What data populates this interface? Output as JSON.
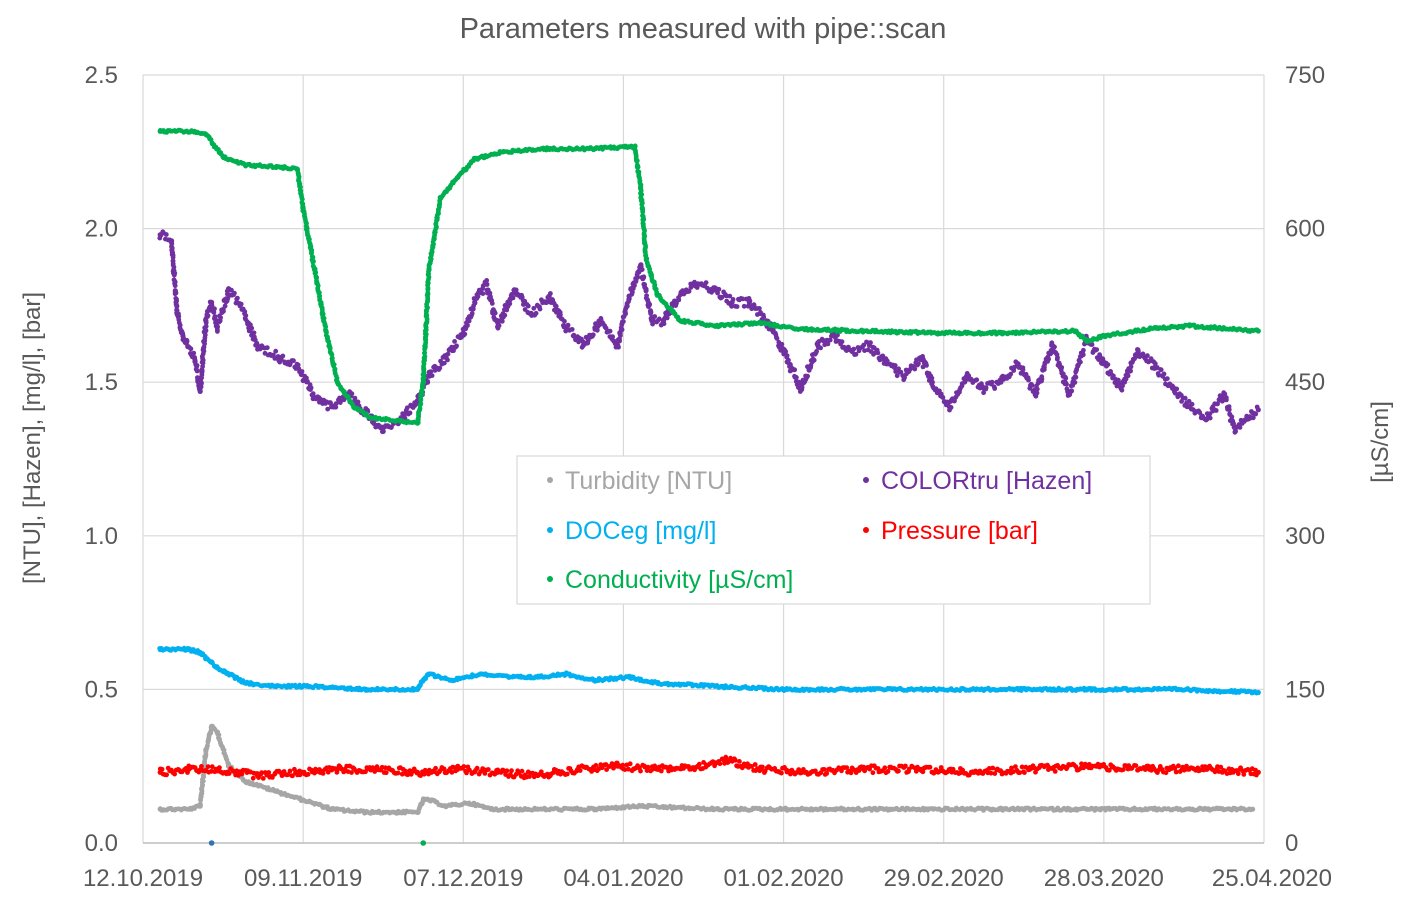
{
  "chart_data": {
    "type": "scatter",
    "title": "Parameters measured with pipe::scan",
    "ylabel": "[NTU], [Hazen], [mg/l], [bar]",
    "y2label": "[µS/cm]",
    "xlim": [
      "2019-10-12",
      "2020-04-25"
    ],
    "ylim": [
      0,
      2.5
    ],
    "y2lim": [
      0,
      750
    ],
    "x_ticks": [
      "12.10.2019",
      "09.11.2019",
      "07.12.2019",
      "04.01.2020",
      "01.02.2020",
      "29.02.2020",
      "28.03.2020",
      "25.04.2020"
    ],
    "y_ticks": [
      "0.0",
      "0.5",
      "1.0",
      "1.5",
      "2.0",
      "2.5"
    ],
    "y2_ticks": [
      "0",
      "150",
      "300",
      "450",
      "600",
      "750"
    ],
    "grid": true,
    "legend_position": "center",
    "series": [
      {
        "name": "Turbidity [NTU]",
        "axis": "left",
        "color": "#a6a6a6",
        "points": [
          [
            "2019-10-15",
            0.11
          ],
          [
            "2019-10-20",
            0.11
          ],
          [
            "2019-10-22",
            0.12
          ],
          [
            "2019-10-23",
            0.3
          ],
          [
            "2019-10-24",
            0.38
          ],
          [
            "2019-10-25",
            0.36
          ],
          [
            "2019-10-27",
            0.25
          ],
          [
            "2019-10-30",
            0.2
          ],
          [
            "2019-11-04",
            0.17
          ],
          [
            "2019-11-09",
            0.14
          ],
          [
            "2019-11-14",
            0.11
          ],
          [
            "2019-11-20",
            0.1
          ],
          [
            "2019-11-25",
            0.1
          ],
          [
            "2019-11-29",
            0.1
          ],
          [
            "2019-11-30",
            0.14
          ],
          [
            "2019-12-01",
            0.14
          ],
          [
            "2019-12-04",
            0.12
          ],
          [
            "2019-12-08",
            0.13
          ],
          [
            "2019-12-12",
            0.11
          ],
          [
            "2019-12-20",
            0.11
          ],
          [
            "2019-12-30",
            0.11
          ],
          [
            "2020-01-07",
            0.12
          ],
          [
            "2020-01-20",
            0.11
          ],
          [
            "2020-02-05",
            0.11
          ],
          [
            "2020-02-20",
            0.11
          ],
          [
            "2020-03-10",
            0.11
          ],
          [
            "2020-03-25",
            0.11
          ],
          [
            "2020-04-10",
            0.11
          ],
          [
            "2020-04-23",
            0.11
          ]
        ]
      },
      {
        "name": "COLORtru [Hazen]",
        "axis": "left",
        "color": "#7030a0",
        "points": [
          [
            "2019-10-15",
            1.98
          ],
          [
            "2019-10-17",
            1.96
          ],
          [
            "2019-10-18",
            1.72
          ],
          [
            "2019-10-19",
            1.65
          ],
          [
            "2019-10-21",
            1.58
          ],
          [
            "2019-10-22",
            1.47
          ],
          [
            "2019-10-23",
            1.7
          ],
          [
            "2019-10-24",
            1.76
          ],
          [
            "2019-10-25",
            1.68
          ],
          [
            "2019-10-27",
            1.8
          ],
          [
            "2019-10-29",
            1.75
          ],
          [
            "2019-11-01",
            1.62
          ],
          [
            "2019-11-05",
            1.58
          ],
          [
            "2019-11-08",
            1.55
          ],
          [
            "2019-11-11",
            1.45
          ],
          [
            "2019-11-14",
            1.42
          ],
          [
            "2019-11-17",
            1.46
          ],
          [
            "2019-11-20",
            1.4
          ],
          [
            "2019-11-23",
            1.34
          ],
          [
            "2019-11-26",
            1.38
          ],
          [
            "2019-11-29",
            1.44
          ],
          [
            "2019-12-01",
            1.52
          ],
          [
            "2019-12-04",
            1.58
          ],
          [
            "2019-12-07",
            1.66
          ],
          [
            "2019-12-09",
            1.76
          ],
          [
            "2019-12-11",
            1.82
          ],
          [
            "2019-12-13",
            1.68
          ],
          [
            "2019-12-16",
            1.8
          ],
          [
            "2019-12-19",
            1.72
          ],
          [
            "2019-12-22",
            1.78
          ],
          [
            "2019-12-25",
            1.68
          ],
          [
            "2019-12-28",
            1.62
          ],
          [
            "2019-12-31",
            1.7
          ],
          [
            "2020-01-03",
            1.62
          ],
          [
            "2020-01-05",
            1.78
          ],
          [
            "2020-01-07",
            1.88
          ],
          [
            "2020-01-09",
            1.7
          ],
          [
            "2020-01-11",
            1.7
          ],
          [
            "2020-01-13",
            1.76
          ],
          [
            "2020-01-15",
            1.8
          ],
          [
            "2020-01-17",
            1.82
          ],
          [
            "2020-01-20",
            1.8
          ],
          [
            "2020-01-23",
            1.76
          ],
          [
            "2020-01-26",
            1.76
          ],
          [
            "2020-01-29",
            1.7
          ],
          [
            "2020-02-01",
            1.6
          ],
          [
            "2020-02-04",
            1.48
          ],
          [
            "2020-02-07",
            1.62
          ],
          [
            "2020-02-10",
            1.65
          ],
          [
            "2020-02-13",
            1.6
          ],
          [
            "2020-02-16",
            1.62
          ],
          [
            "2020-02-19",
            1.56
          ],
          [
            "2020-02-22",
            1.52
          ],
          [
            "2020-02-25",
            1.58
          ],
          [
            "2020-02-27",
            1.5
          ],
          [
            "2020-03-01",
            1.42
          ],
          [
            "2020-03-04",
            1.52
          ],
          [
            "2020-03-07",
            1.48
          ],
          [
            "2020-03-10",
            1.5
          ],
          [
            "2020-03-13",
            1.56
          ],
          [
            "2020-03-16",
            1.46
          ],
          [
            "2020-03-19",
            1.62
          ],
          [
            "2020-03-22",
            1.46
          ],
          [
            "2020-03-25",
            1.64
          ],
          [
            "2020-03-28",
            1.56
          ],
          [
            "2020-03-31",
            1.48
          ],
          [
            "2020-04-03",
            1.6
          ],
          [
            "2020-04-06",
            1.55
          ],
          [
            "2020-04-09",
            1.48
          ],
          [
            "2020-04-12",
            1.42
          ],
          [
            "2020-04-15",
            1.38
          ],
          [
            "2020-04-18",
            1.46
          ],
          [
            "2020-04-20",
            1.34
          ],
          [
            "2020-04-22",
            1.38
          ],
          [
            "2020-04-24",
            1.41
          ]
        ]
      },
      {
        "name": "DOCeg [mg/l]",
        "axis": "left",
        "color": "#00b0f0",
        "points": [
          [
            "2019-10-15",
            0.63
          ],
          [
            "2019-10-20",
            0.63
          ],
          [
            "2019-10-22",
            0.62
          ],
          [
            "2019-10-25",
            0.57
          ],
          [
            "2019-10-30",
            0.52
          ],
          [
            "2019-11-04",
            0.51
          ],
          [
            "2019-11-10",
            0.51
          ],
          [
            "2019-11-20",
            0.5
          ],
          [
            "2019-11-29",
            0.5
          ],
          [
            "2019-11-30",
            0.53
          ],
          [
            "2019-12-01",
            0.55
          ],
          [
            "2019-12-05",
            0.53
          ],
          [
            "2019-12-10",
            0.55
          ],
          [
            "2019-12-15",
            0.54
          ],
          [
            "2019-12-20",
            0.54
          ],
          [
            "2019-12-25",
            0.55
          ],
          [
            "2019-12-30",
            0.53
          ],
          [
            "2020-01-05",
            0.54
          ],
          [
            "2020-01-10",
            0.52
          ],
          [
            "2020-01-20",
            0.51
          ],
          [
            "2020-02-01",
            0.5
          ],
          [
            "2020-02-20",
            0.5
          ],
          [
            "2020-03-10",
            0.5
          ],
          [
            "2020-03-25",
            0.5
          ],
          [
            "2020-04-10",
            0.5
          ],
          [
            "2020-04-24",
            0.49
          ]
        ]
      },
      {
        "name": "Pressure [bar]",
        "axis": "left",
        "color": "#ff0000",
        "points": [
          [
            "2019-10-15",
            0.23
          ],
          [
            "2019-10-20",
            0.24
          ],
          [
            "2019-10-25",
            0.24
          ],
          [
            "2019-11-01",
            0.22
          ],
          [
            "2019-11-08",
            0.23
          ],
          [
            "2019-11-15",
            0.24
          ],
          [
            "2019-11-22",
            0.24
          ],
          [
            "2019-11-29",
            0.23
          ],
          [
            "2019-12-06",
            0.24
          ],
          [
            "2019-12-13",
            0.23
          ],
          [
            "2019-12-20",
            0.22
          ],
          [
            "2019-12-27",
            0.24
          ],
          [
            "2020-01-03",
            0.25
          ],
          [
            "2020-01-10",
            0.24
          ],
          [
            "2020-01-17",
            0.25
          ],
          [
            "2020-01-22",
            0.27
          ],
          [
            "2020-01-28",
            0.24
          ],
          [
            "2020-02-05",
            0.23
          ],
          [
            "2020-02-15",
            0.24
          ],
          [
            "2020-02-25",
            0.24
          ],
          [
            "2020-03-05",
            0.23
          ],
          [
            "2020-03-15",
            0.24
          ],
          [
            "2020-03-25",
            0.25
          ],
          [
            "2020-04-05",
            0.24
          ],
          [
            "2020-04-15",
            0.24
          ],
          [
            "2020-04-24",
            0.23
          ]
        ]
      },
      {
        "name": "Conductivity [µS/cm]",
        "axis": "right",
        "color": "#00b050",
        "points": [
          [
            "2019-10-15",
            695
          ],
          [
            "2019-10-21",
            695
          ],
          [
            "2019-10-23",
            692
          ],
          [
            "2019-10-26",
            670
          ],
          [
            "2019-10-30",
            662
          ],
          [
            "2019-11-05",
            660
          ],
          [
            "2019-11-08",
            658
          ],
          [
            "2019-11-09",
            620
          ],
          [
            "2019-11-11",
            560
          ],
          [
            "2019-11-13",
            500
          ],
          [
            "2019-11-15",
            450
          ],
          [
            "2019-11-18",
            425
          ],
          [
            "2019-11-21",
            415
          ],
          [
            "2019-11-26",
            412
          ],
          [
            "2019-11-29",
            410
          ],
          [
            "2019-11-30",
            450
          ],
          [
            "2019-12-01",
            560
          ],
          [
            "2019-12-03",
            630
          ],
          [
            "2019-12-06",
            650
          ],
          [
            "2019-12-09",
            668
          ],
          [
            "2019-12-14",
            675
          ],
          [
            "2019-12-22",
            678
          ],
          [
            "2019-12-30",
            678
          ],
          [
            "2020-01-06",
            680
          ],
          [
            "2020-01-07",
            640
          ],
          [
            "2020-01-08",
            570
          ],
          [
            "2020-01-10",
            535
          ],
          [
            "2020-01-14",
            510
          ],
          [
            "2020-01-20",
            505
          ],
          [
            "2020-01-28",
            508
          ],
          [
            "2020-02-03",
            502
          ],
          [
            "2020-02-15",
            500
          ],
          [
            "2020-02-28",
            498
          ],
          [
            "2020-03-10",
            498
          ],
          [
            "2020-03-23",
            500
          ],
          [
            "2020-03-25",
            490
          ],
          [
            "2020-03-28",
            495
          ],
          [
            "2020-04-05",
            502
          ],
          [
            "2020-04-12",
            505
          ],
          [
            "2020-04-24",
            500
          ]
        ]
      }
    ]
  }
}
